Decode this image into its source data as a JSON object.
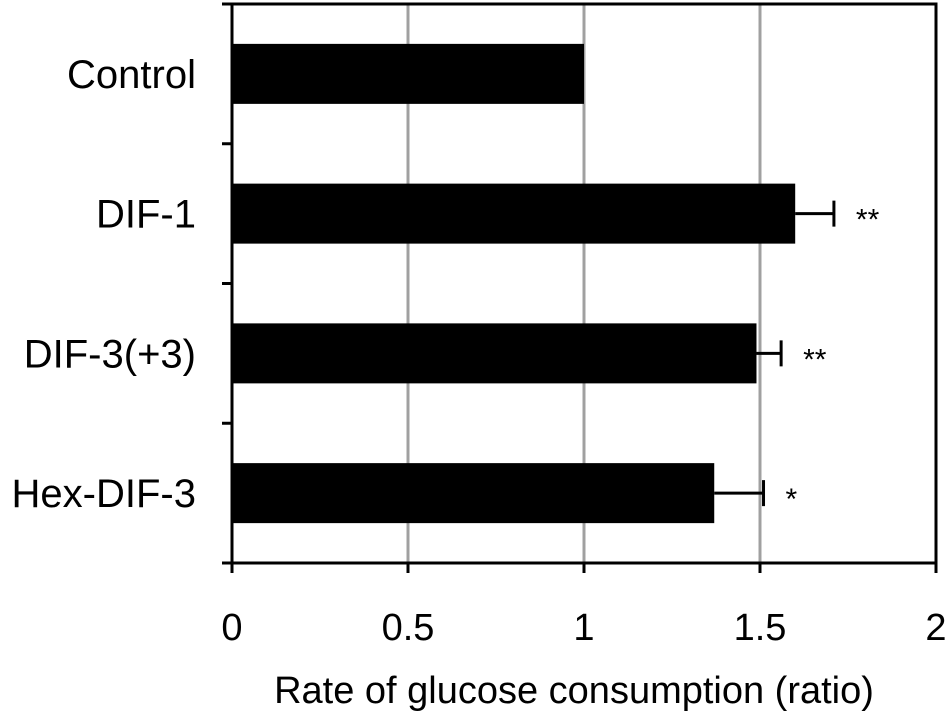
{
  "chart_data": {
    "type": "bar",
    "orientation": "horizontal",
    "categories": [
      "Control",
      "DIF-1",
      "DIF-3(+3)",
      "Hex-DIF-3"
    ],
    "values": [
      1.0,
      1.6,
      1.49,
      1.37
    ],
    "errors": [
      0,
      0.11,
      0.07,
      0.14
    ],
    "significance": [
      "",
      "**",
      "**",
      "*"
    ],
    "xlabel": "Rate of glucose consumption (ratio)",
    "ylabel": "",
    "title": "",
    "xlim": [
      0,
      2
    ],
    "xticks": [
      0,
      0.5,
      1,
      1.5,
      2
    ],
    "xtick_labels": [
      "0",
      "0.5",
      "1",
      "1.5",
      "2"
    ],
    "grid": "vertical",
    "bar_color": "#000000",
    "grid_color": "#a0a0a0"
  }
}
